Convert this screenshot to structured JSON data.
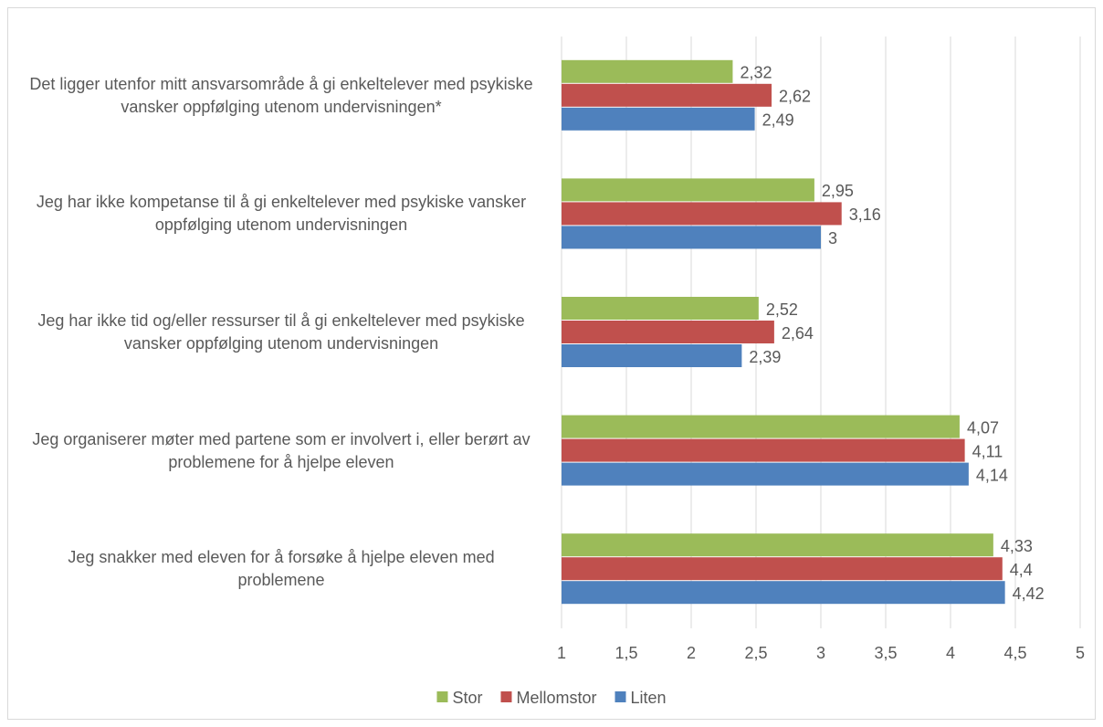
{
  "chart_data": {
    "type": "bar",
    "orientation": "horizontal",
    "categories": [
      "Det ligger utenfor mitt ansvarsområde å gi enkeltelever med psykiske vansker oppfølging utenom undervisningen*",
      "Jeg har ikke kompetanse til å gi enkeltelever med psykiske vansker oppfølging utenom undervisningen",
      "Jeg har ikke tid og/eller ressurser til å gi enkeltelever med psykiske vansker oppfølging utenom undervisningen",
      "Jeg organiserer møter med partene som er involvert i, eller berørt av problemene for å hjelpe eleven",
      "Jeg snakker med eleven for å forsøke å hjelpe eleven med problemene"
    ],
    "series": [
      {
        "name": "Stor",
        "color": "#9bbb59",
        "values": [
          2.32,
          2.95,
          2.52,
          4.07,
          4.33
        ],
        "value_labels": [
          "2,32",
          "2,95",
          "2,52",
          "4,07",
          "4,33"
        ]
      },
      {
        "name": "Mellomstor",
        "color": "#c0504d",
        "values": [
          2.62,
          3.16,
          2.64,
          4.11,
          4.4
        ],
        "value_labels": [
          "2,62",
          "3,16",
          "2,64",
          "4,11",
          "4,4"
        ]
      },
      {
        "name": "Liten",
        "color": "#4f81bd",
        "values": [
          2.49,
          3,
          2.39,
          4.14,
          4.42
        ],
        "value_labels": [
          "2,49",
          "3",
          "2,39",
          "4,14",
          "4,42"
        ]
      }
    ],
    "xlim": [
      1,
      5
    ],
    "xticks": [
      1,
      {
        "value": 1.5,
        "label": "1,5"
      },
      2,
      {
        "value": 2.5,
        "label": "2,5"
      },
      3,
      {
        "value": 3.5,
        "label": "3,5"
      },
      4,
      {
        "value": 4.5,
        "label": "4,5"
      },
      5
    ],
    "grid": true,
    "legend": "bottom"
  }
}
